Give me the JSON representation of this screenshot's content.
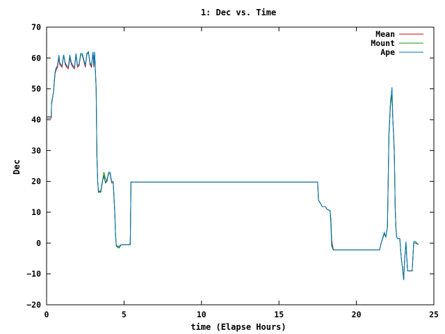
{
  "chart_data": {
    "type": "line",
    "title": "1: Dec vs. Time",
    "xlabel": "time (Elapse Hours)",
    "ylabel": "Dec",
    "xlim": [
      0,
      25
    ],
    "ylim": [
      -20,
      70
    ],
    "xticks": [
      0,
      5,
      10,
      15,
      20,
      25
    ],
    "yticks": [
      -20,
      -10,
      0,
      10,
      20,
      30,
      40,
      50,
      60,
      70
    ],
    "grid": false,
    "legend_position": "top-right",
    "series": [
      {
        "name": "Mean",
        "color": "#cc0000",
        "x": [
          0,
          0.3,
          0.32,
          0.45,
          0.5,
          0.55,
          0.6,
          0.7,
          0.8,
          0.85,
          0.9,
          1.0,
          1.1,
          1.2,
          1.25,
          1.3,
          1.4,
          1.5,
          1.6,
          1.7,
          1.8,
          1.9,
          2.0,
          2.1,
          2.2,
          2.3,
          2.4,
          2.5,
          2.6,
          2.7,
          2.8,
          2.9,
          3.0,
          3.05,
          3.1,
          3.2,
          3.25,
          3.3,
          3.35,
          3.5,
          3.6,
          3.7,
          3.8,
          3.9,
          4.0,
          4.1,
          4.2,
          4.3,
          4.4,
          4.45,
          4.5,
          4.6,
          4.7,
          4.8,
          5.0,
          5.4,
          5.45,
          5.5,
          17.5,
          17.55,
          17.8,
          18.0,
          18.1,
          18.3,
          18.35,
          18.4,
          18.5,
          18.6,
          19.0,
          20.0,
          21.0,
          21.5,
          21.6,
          21.8,
          21.9,
          22.0,
          22.1,
          22.2,
          22.3,
          22.35,
          22.4,
          22.45,
          22.5,
          22.55,
          22.6,
          22.65,
          22.8,
          22.9,
          23.0,
          23.05,
          23.1,
          23.2,
          23.3,
          23.4,
          23.5,
          23.6,
          23.7,
          23.8,
          24.0
        ],
        "y": [
          40.5,
          40.5,
          45,
          49,
          52,
          55,
          56,
          57,
          60,
          58,
          57.5,
          57,
          61,
          58,
          57.5,
          57,
          56.5,
          60,
          58,
          57,
          56.5,
          61,
          57,
          57.5,
          61,
          61,
          59,
          57,
          61,
          62,
          58,
          57,
          62,
          57,
          61.5,
          50,
          28,
          20,
          16.5,
          17,
          20,
          22,
          19.5,
          20.5,
          22.5,
          22.5,
          19.5,
          19.5,
          10,
          3,
          -1,
          -1,
          -1.5,
          -0.5,
          -0.5,
          -0.5,
          19.8,
          19.8,
          19.8,
          14,
          11.8,
          11.8,
          11,
          10.5,
          8,
          1,
          -2,
          -2.2,
          -2.2,
          -2.2,
          -2.2,
          -2.2,
          0,
          3,
          2,
          5,
          35,
          45,
          48,
          40,
          35,
          28,
          12,
          5,
          2,
          1.5,
          1.5,
          -5,
          -9,
          -12,
          -6,
          0,
          -9,
          -9,
          -9,
          -9,
          0,
          0,
          -0.5
        ]
      },
      {
        "name": "Mount",
        "color": "#00a000",
        "x": [
          0,
          0.3,
          0.32,
          0.45,
          0.5,
          0.55,
          0.6,
          0.7,
          0.8,
          0.85,
          0.9,
          1.0,
          1.1,
          1.2,
          1.25,
          1.3,
          1.4,
          1.5,
          1.6,
          1.7,
          1.8,
          1.9,
          2.0,
          2.1,
          2.2,
          2.3,
          2.4,
          2.5,
          2.6,
          2.7,
          2.8,
          2.9,
          3.0,
          3.05,
          3.1,
          3.2,
          3.25,
          3.3,
          3.35,
          3.5,
          3.6,
          3.7,
          3.8,
          3.9,
          4.0,
          4.1,
          4.2,
          4.3,
          4.4,
          4.45,
          4.5,
          4.6,
          4.7,
          4.8,
          5.0,
          5.4,
          5.45,
          5.5,
          17.5,
          17.55,
          17.8,
          18.0,
          18.1,
          18.3,
          18.35,
          18.4,
          18.5,
          18.6,
          19.0,
          20.0,
          21.0,
          21.5,
          21.6,
          21.8,
          21.9,
          22.0,
          22.1,
          22.2,
          22.3,
          22.35,
          22.4,
          22.45,
          22.5,
          22.55,
          22.6,
          22.65,
          22.8,
          22.9,
          23.0,
          23.05,
          23.1,
          23.2,
          23.3,
          23.4,
          23.5,
          23.6,
          23.7,
          23.8,
          24.0
        ],
        "y": [
          41,
          41,
          45.5,
          49,
          52.5,
          55.5,
          56.5,
          57.5,
          60.5,
          58.5,
          58,
          57.5,
          61,
          58.5,
          58,
          57.5,
          57,
          60.5,
          58.5,
          57.5,
          57,
          61,
          57.5,
          58,
          61,
          61,
          59.5,
          57.5,
          61,
          62,
          58.5,
          57.5,
          62,
          57.5,
          61.5,
          50,
          28,
          20,
          17,
          16.5,
          19.5,
          23,
          21,
          20,
          22.5,
          22.5,
          20,
          20,
          10.5,
          3.5,
          -1,
          -1.5,
          -1.5,
          -0.5,
          -0.5,
          -0.5,
          19.8,
          19.8,
          19.8,
          14,
          11.8,
          11.8,
          11,
          10.5,
          6,
          -1,
          -2.2,
          -2.2,
          -2.2,
          -2.2,
          -2.2,
          -2.2,
          0,
          3,
          2,
          5,
          35,
          45,
          48,
          40,
          35,
          28,
          12,
          5,
          2,
          1.5,
          1.5,
          -5,
          -9,
          -12,
          -6,
          0,
          -9,
          -9,
          -9,
          -9,
          0,
          0,
          -0.5
        ]
      },
      {
        "name": "Ape",
        "color": "#0070c0",
        "x": [
          0,
          0.3,
          0.32,
          0.45,
          0.5,
          0.55,
          0.6,
          0.7,
          0.8,
          0.85,
          0.9,
          1.0,
          1.1,
          1.2,
          1.25,
          1.3,
          1.4,
          1.5,
          1.6,
          1.7,
          1.8,
          1.9,
          2.0,
          2.1,
          2.2,
          2.3,
          2.4,
          2.5,
          2.6,
          2.7,
          2.8,
          2.9,
          3.0,
          3.05,
          3.1,
          3.2,
          3.25,
          3.3,
          3.35,
          3.5,
          3.6,
          3.7,
          3.8,
          3.9,
          4.0,
          4.1,
          4.2,
          4.3,
          4.4,
          4.45,
          4.5,
          4.6,
          4.7,
          4.8,
          5.0,
          5.4,
          5.45,
          5.5,
          17.5,
          17.55,
          17.8,
          18.0,
          18.1,
          18.3,
          18.35,
          18.4,
          18.5,
          18.6,
          19.0,
          20.0,
          21.0,
          21.5,
          21.6,
          21.8,
          21.9,
          22.0,
          22.1,
          22.2,
          22.3,
          22.35,
          22.4,
          22.45,
          22.5,
          22.55,
          22.6,
          22.65,
          22.8,
          22.9,
          23.0,
          23.05,
          23.1,
          23.2,
          23.3,
          23.4,
          23.5,
          23.6,
          23.7,
          23.8,
          24.0
        ],
        "y": [
          41,
          41,
          45.5,
          49,
          52.5,
          55.5,
          56.5,
          57.5,
          61,
          58.5,
          58,
          57.5,
          61,
          58.5,
          58,
          57.5,
          57,
          61,
          58.5,
          57.5,
          57,
          61.5,
          57.5,
          58,
          61.5,
          61.5,
          59.5,
          57.5,
          61.5,
          62,
          58.5,
          57.5,
          62,
          57.5,
          62,
          50,
          28,
          20,
          16.5,
          16.5,
          20,
          21.5,
          19.5,
          20,
          23,
          23,
          20,
          20,
          10.5,
          3.5,
          -1,
          -1,
          -1,
          -0.5,
          -0.5,
          -0.5,
          19.8,
          19.8,
          19.8,
          14,
          11.8,
          11.8,
          11,
          10.5,
          8,
          0,
          -2.2,
          -2.2,
          -2.2,
          -2.2,
          -2.2,
          -2.2,
          0,
          3.5,
          2,
          5,
          36,
          46,
          50.5,
          40,
          35,
          29,
          12,
          5,
          2,
          1.5,
          1.5,
          -5,
          -9,
          -12,
          -6,
          0.5,
          -9,
          -9,
          -9,
          -9,
          0.5,
          0.5,
          -0.5
        ]
      }
    ]
  }
}
